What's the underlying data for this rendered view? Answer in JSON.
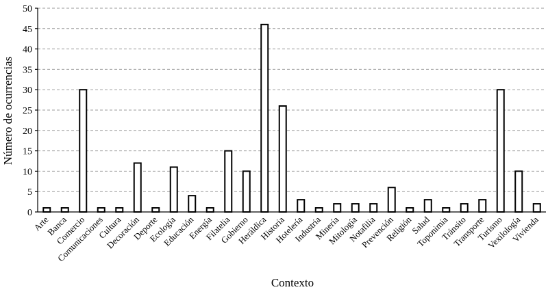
{
  "chart_data": {
    "type": "bar",
    "xlabel": "Contexto",
    "ylabel": "Número de ocurrencias",
    "ylim": [
      0,
      50
    ],
    "yticks": [
      0,
      5,
      10,
      15,
      20,
      25,
      30,
      35,
      40,
      45,
      50
    ],
    "grid": true,
    "categories": [
      "Arte",
      "Banca",
      "Comercio",
      "Comunicaciones",
      "Cultura",
      "Decoración",
      "Deporte",
      "Ecología",
      "Educación",
      "Energía",
      "Filatelia",
      "Gobierno",
      "Heráldica",
      "Historia",
      "Hotelería",
      "Industria",
      "Minería",
      "Mitología",
      "Notafilia",
      "Prevención",
      "Religión",
      "Salud",
      "Toponimia",
      "Tránsito",
      "Transporte",
      "Turismo",
      "Vexilología",
      "Vivienda"
    ],
    "values": [
      1,
      1,
      30,
      1,
      1,
      12,
      1,
      11,
      4,
      1,
      15,
      10,
      46,
      26,
      3,
      1,
      2,
      2,
      2,
      6,
      1,
      3,
      1,
      2,
      3,
      30,
      10,
      2
    ],
    "bar_fill": "#ffffff",
    "bar_stroke": "#000000"
  }
}
